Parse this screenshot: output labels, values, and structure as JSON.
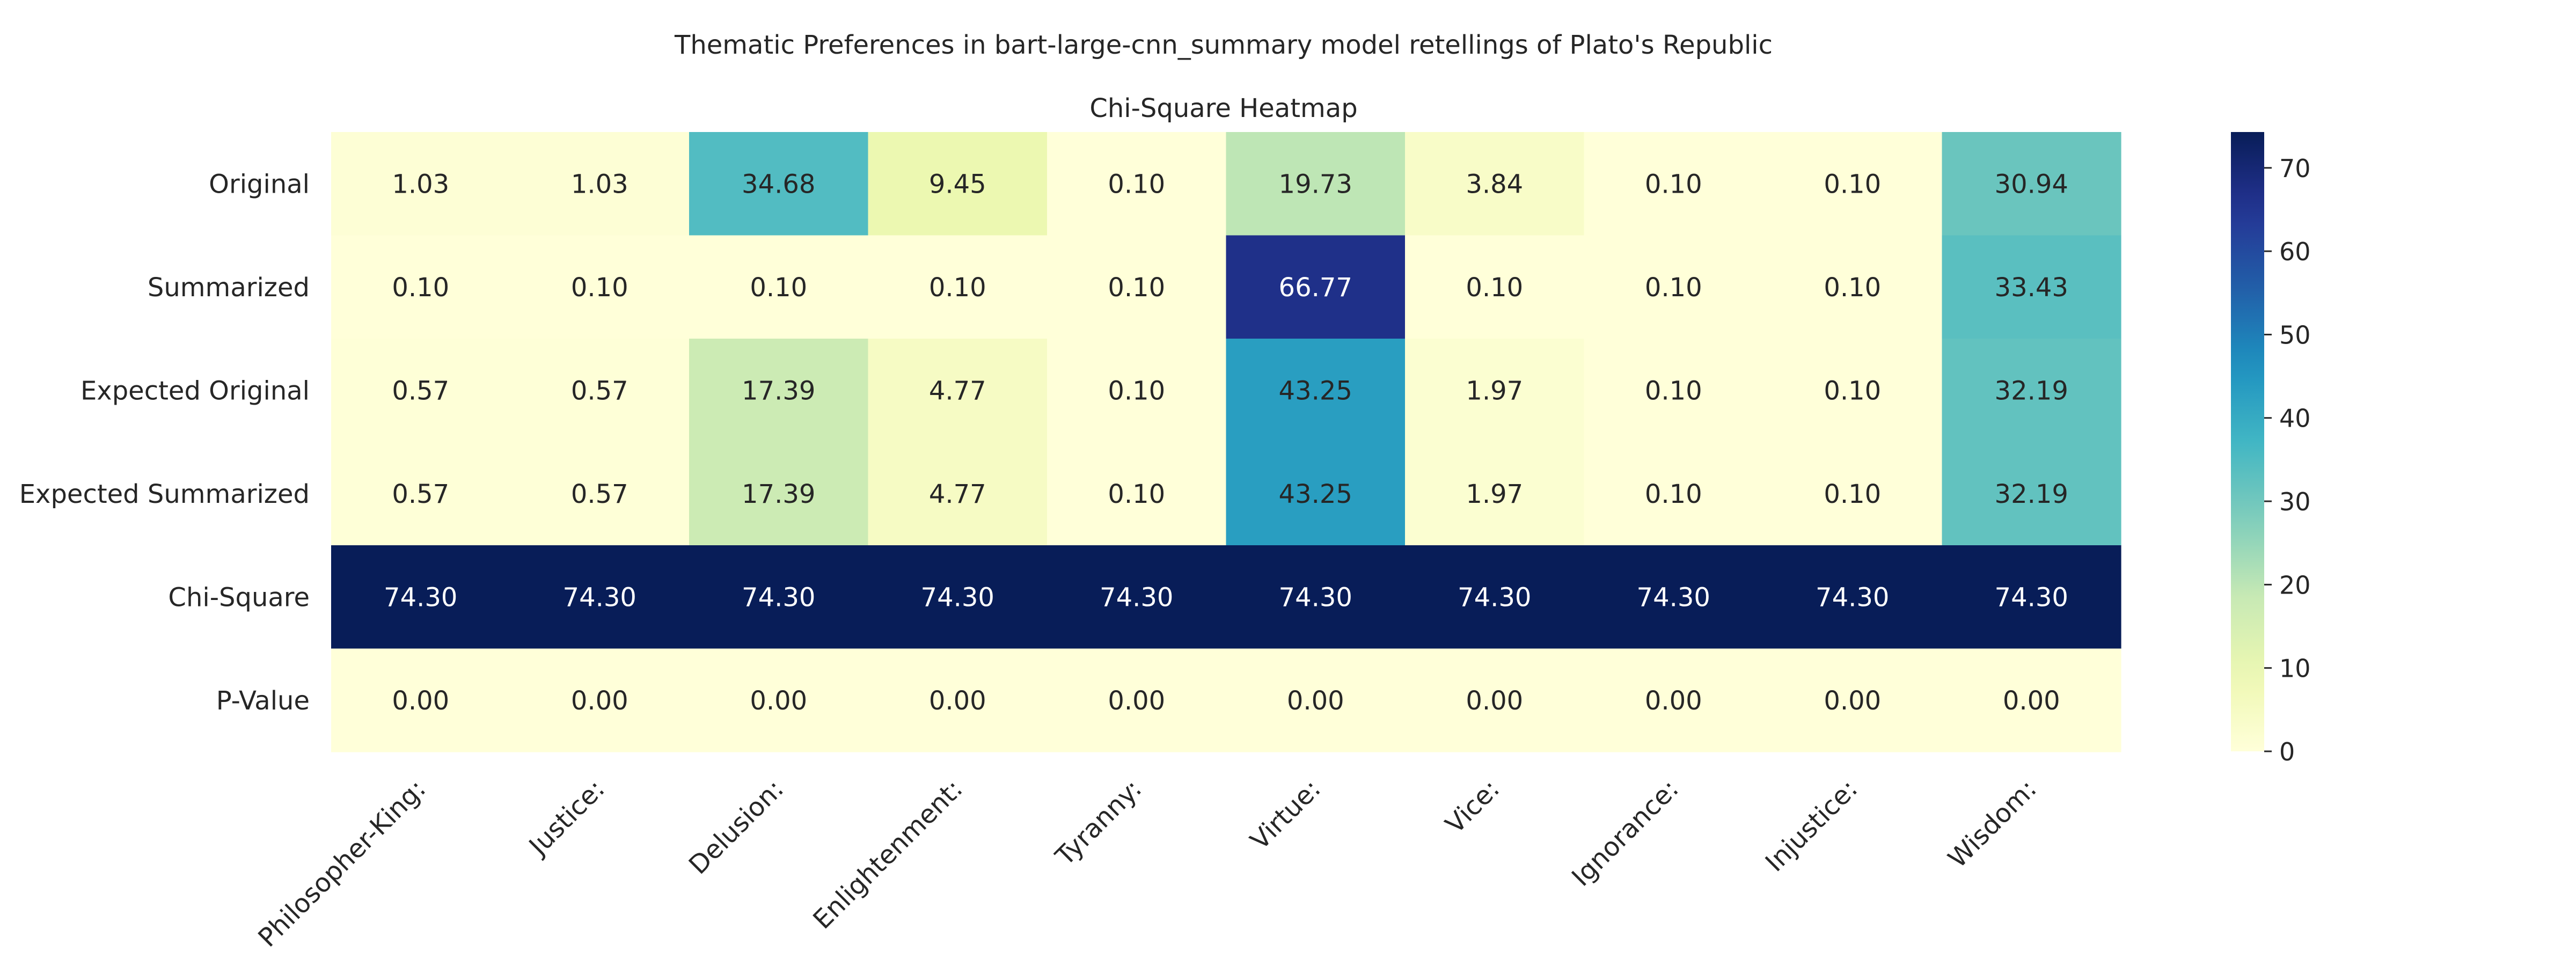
{
  "chart_data": {
    "type": "heatmap",
    "suptitle": "Thematic Preferences in bart-large-cnn_summary model retellings of Plato's Republic",
    "title": "Chi-Square Heatmap",
    "row_labels": [
      "Original",
      "Summarized",
      "Expected Original",
      "Expected Summarized",
      "Chi-Square",
      "P-Value"
    ],
    "col_labels": [
      "Philosopher-King:",
      "Justice:",
      "Delusion:",
      "Enlightenment:",
      "Tyranny:",
      "Virtue:",
      "Vice:",
      "Ignorance:",
      "Injustice:",
      "Wisdom:"
    ],
    "values": [
      [
        1.03,
        1.03,
        34.68,
        9.45,
        0.1,
        19.73,
        3.84,
        0.1,
        0.1,
        30.94
      ],
      [
        0.1,
        0.1,
        0.1,
        0.1,
        0.1,
        66.77,
        0.1,
        0.1,
        0.1,
        33.43
      ],
      [
        0.57,
        0.57,
        17.39,
        4.77,
        0.1,
        43.25,
        1.97,
        0.1,
        0.1,
        32.19
      ],
      [
        0.57,
        0.57,
        17.39,
        4.77,
        0.1,
        43.25,
        1.97,
        0.1,
        0.1,
        32.19
      ],
      [
        74.3,
        74.3,
        74.3,
        74.3,
        74.3,
        74.3,
        74.3,
        74.3,
        74.3,
        74.3
      ],
      [
        0.0,
        0.0,
        0.0,
        0.0,
        0.0,
        0.0,
        0.0,
        0.0,
        0.0,
        0.0
      ]
    ],
    "value_format_decimals": 2,
    "colormap": "YlGnBu",
    "colorbar": {
      "range": [
        0,
        74.3
      ],
      "ticks": [
        0,
        10,
        20,
        30,
        40,
        50,
        60,
        70
      ]
    }
  }
}
